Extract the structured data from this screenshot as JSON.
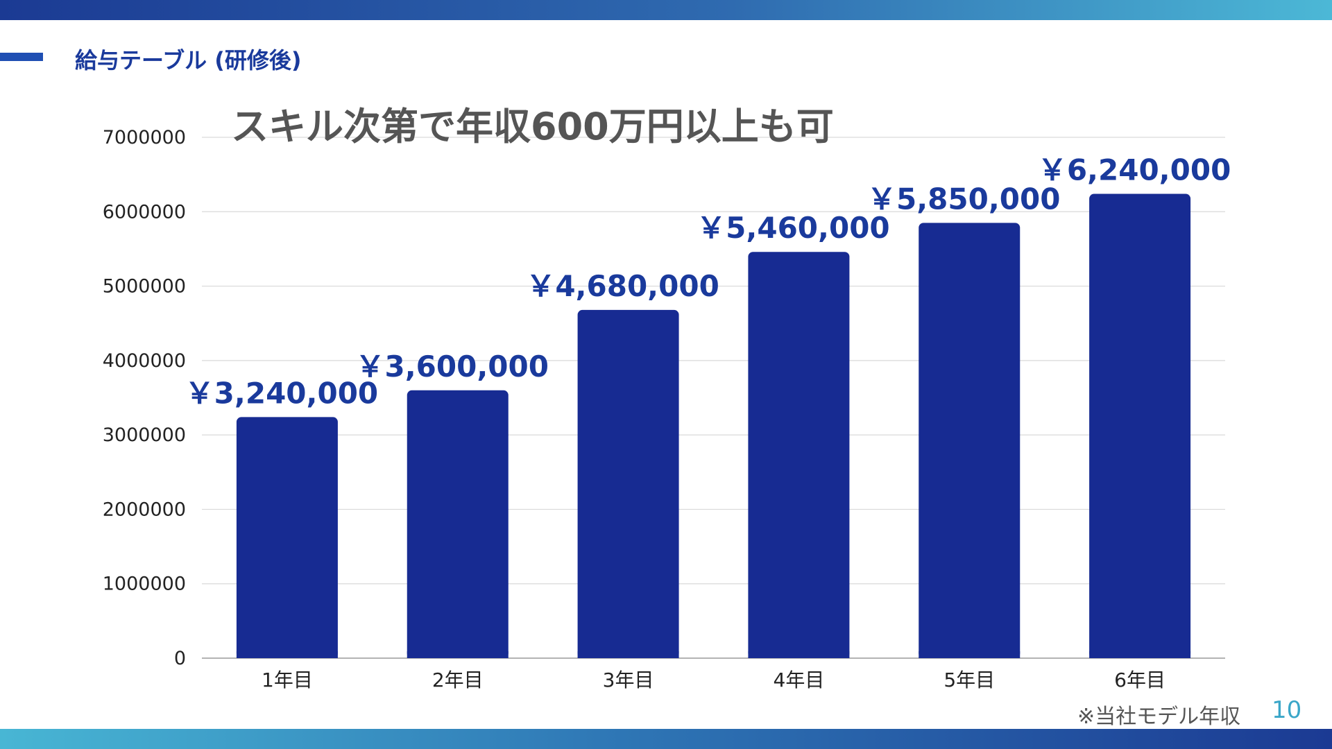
{
  "slide": {
    "header_title": "給与テーブル (研修後)",
    "footnote": "※当社モデル年収",
    "page_number": "10",
    "colors": {
      "bar": "#172b92",
      "label": "#1a3a9c",
      "grid": "#d9d9d9",
      "axis_text": "#222222",
      "title_text": "#555555",
      "page_number": "#3aa6c8"
    }
  },
  "chart_data": {
    "type": "bar",
    "title": "スキル次第で年収600万円以上も可",
    "xlabel": "",
    "ylabel": "",
    "categories": [
      "1年目",
      "2年目",
      "3年目",
      "4年目",
      "5年目",
      "6年目"
    ],
    "values": [
      3240000,
      3600000,
      4680000,
      5460000,
      5850000,
      6240000
    ],
    "data_labels": [
      "￥3,240,000",
      "￥3,600,000",
      "￥4,680,000",
      "￥5,460,000",
      "￥5,850,000",
      "￥6,240,000"
    ],
    "ylim": [
      0,
      7000000
    ],
    "yticks": [
      "0",
      "1000000",
      "2000000",
      "3000000",
      "4000000",
      "5000000",
      "6000000",
      "7000000"
    ],
    "grid": true,
    "legend": "none"
  }
}
